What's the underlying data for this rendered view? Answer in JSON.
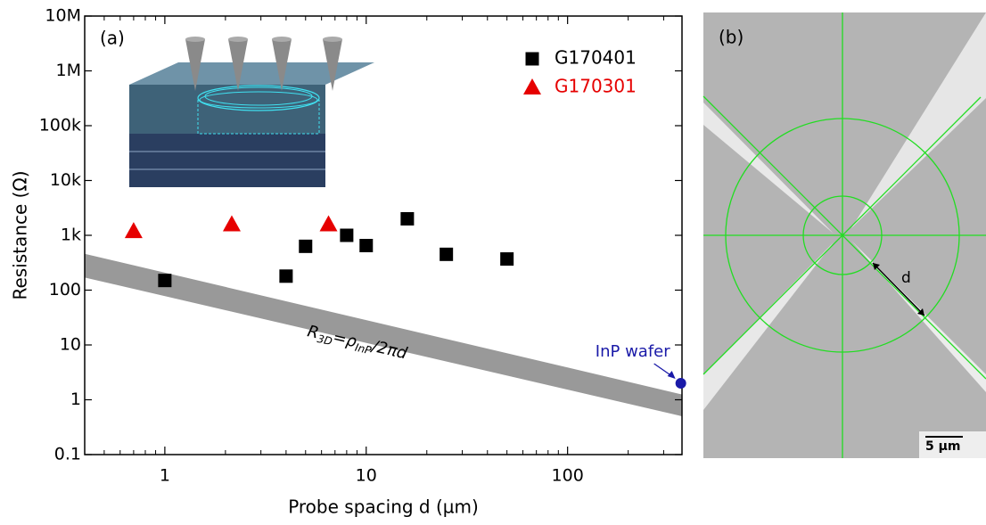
{
  "chart_data": {
    "type": "scatter",
    "panel_label": "(a)",
    "xlabel": "Probe spacing d (µm)",
    "ylabel": "Resistance (Ω)",
    "xscale": "log",
    "yscale": "log",
    "xlim": [
      0.4,
      370
    ],
    "ylim": [
      0.1,
      10000000
    ],
    "xticks": [
      1,
      10,
      100
    ],
    "yticks": [
      0.1,
      1,
      10,
      100,
      {
        "value": 1000,
        "label": "1k"
      },
      {
        "value": 10000,
        "label": "10k"
      },
      {
        "value": 100000,
        "label": "100k"
      },
      {
        "value": 1000000,
        "label": "1M"
      },
      {
        "value": 10000000,
        "label": "10M"
      }
    ],
    "legend": "upper right",
    "series": [
      {
        "name": "G170401",
        "color": "#000000",
        "marker": "square",
        "x": [
          1,
          4,
          5,
          8,
          10,
          16,
          25,
          50
        ],
        "values": [
          150,
          180,
          630,
          1000,
          650,
          2000,
          450,
          370
        ]
      },
      {
        "name": "G170301",
        "color": "#e60000",
        "marker": "triangle",
        "x": [
          0.7,
          2.15,
          6.5
        ],
        "values": [
          1200,
          1600,
          1600
        ]
      }
    ],
    "band": {
      "label": [
        "R",
        "3D",
        "=ρ",
        "InP",
        "/2πd"
      ],
      "color": "#999999",
      "x": [
        0.4,
        370
      ],
      "low": [
        170,
        0.5
      ],
      "high": [
        460,
        1.25
      ]
    },
    "annotation": {
      "text": "InP wafer",
      "color": "#1a1aa8",
      "x": 365,
      "y": 2
    }
  },
  "panel_b": {
    "label": "(b)",
    "distance_label": "d",
    "scale_bar": "5 µm"
  }
}
